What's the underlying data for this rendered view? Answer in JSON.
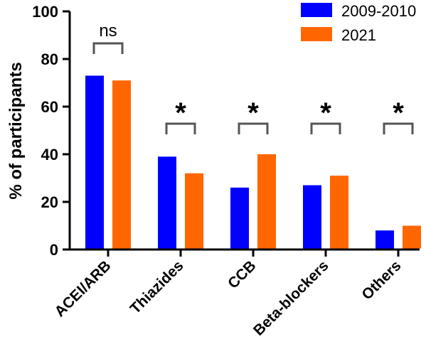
{
  "chart_data": {
    "type": "bar",
    "title": "",
    "xlabel": "",
    "ylabel": "% of participants",
    "ylim": [
      0,
      100
    ],
    "yticks": [
      0,
      20,
      40,
      60,
      80,
      100
    ],
    "grid": false,
    "legend_position": "top-right",
    "categories": [
      "ACEI/ARB",
      "Thiazides",
      "CCB",
      "Beta-blockers",
      "Others"
    ],
    "series": [
      {
        "name": "2009-2010",
        "color": "#0000ff",
        "values": [
          73,
          39,
          26,
          27,
          8
        ]
      },
      {
        "name": "2021",
        "color": "#ff6600",
        "values": [
          71,
          32,
          40,
          31,
          10
        ]
      }
    ],
    "annotations": [
      "ns",
      "*",
      "*",
      "*",
      "*"
    ]
  }
}
